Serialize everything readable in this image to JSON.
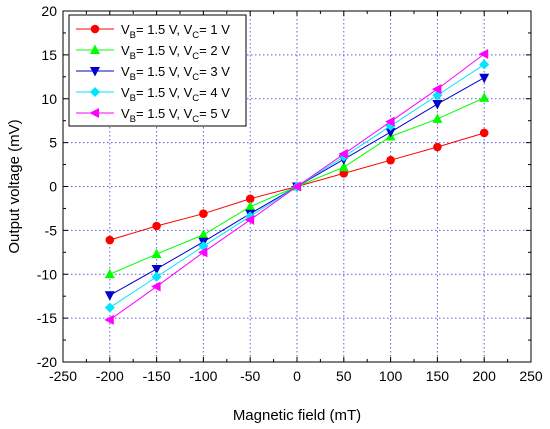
{
  "chart_data": {
    "type": "line",
    "title": "",
    "xlabel": "Magnetic field (mT)",
    "ylabel": "Output voltage (mV)",
    "xlim": [
      -250,
      250
    ],
    "ylim": [
      -20,
      20
    ],
    "xticks": [
      -250,
      -200,
      -150,
      -100,
      -50,
      0,
      50,
      100,
      150,
      200,
      250
    ],
    "yticks": [
      -20,
      -15,
      -10,
      -5,
      0,
      5,
      10,
      15,
      20
    ],
    "grid": true,
    "grid_style": "dotted",
    "legend_position": "top-left",
    "x": [
      -200,
      -150,
      -100,
      -50,
      0,
      50,
      100,
      150,
      200
    ],
    "series": [
      {
        "label_main": "V",
        "label_sub": "B",
        "label_mid": "= 1.5 V, V",
        "label_sub2": "C",
        "label_end": "= 1 V",
        "color": "#ff0000",
        "marker": "circle",
        "values": [
          -6.1,
          -4.5,
          -3.1,
          -1.4,
          0,
          1.5,
          3.0,
          4.5,
          6.1
        ]
      },
      {
        "label_main": "V",
        "label_sub": "B",
        "label_mid": "= 1.5 V, V",
        "label_sub2": "C",
        "label_end": "= 2 V",
        "color": "#00ff00",
        "marker": "triangle-up",
        "values": [
          -10.0,
          -7.7,
          -5.5,
          -2.3,
          0,
          2.2,
          5.7,
          7.7,
          10.1
        ]
      },
      {
        "label_main": "V",
        "label_sub": "B",
        "label_mid": "= 1.5 V, V",
        "label_sub2": "C",
        "label_end": "= 3 V",
        "color": "#0000cc",
        "marker": "triangle-down",
        "values": [
          -12.4,
          -9.4,
          -6.3,
          -3.1,
          0,
          3.1,
          6.2,
          9.4,
          12.4
        ]
      },
      {
        "label_main": "V",
        "label_sub": "B",
        "label_mid": "= 1.5 V, V",
        "label_sub2": "C",
        "label_end": "= 4 V",
        "color": "#00e5ff",
        "marker": "diamond",
        "values": [
          -13.8,
          -10.3,
          -6.8,
          -3.4,
          0,
          3.4,
          6.9,
          10.4,
          13.9
        ]
      },
      {
        "label_main": "V",
        "label_sub": "B",
        "label_mid": "= 1.5 V, V",
        "label_sub2": "C",
        "label_end": "= 5 V",
        "color": "#ff00ff",
        "marker": "triangle-left",
        "values": [
          -15.2,
          -11.4,
          -7.5,
          -3.8,
          0,
          3.7,
          7.4,
          11.1,
          15.1
        ]
      }
    ]
  }
}
